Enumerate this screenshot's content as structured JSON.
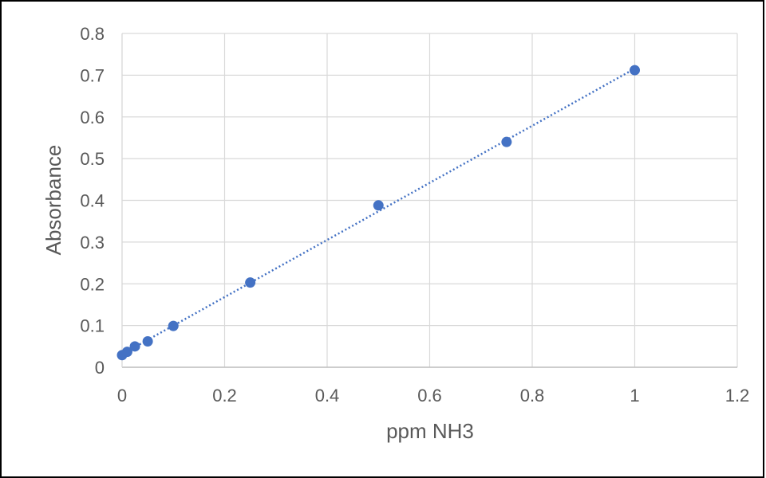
{
  "chart_data": {
    "type": "scatter",
    "title": "",
    "xlabel": "ppm NH3",
    "ylabel": "Absorbance",
    "xlim": [
      0,
      1.2
    ],
    "ylim": [
      0,
      0.8
    ],
    "x_ticks": [
      "0",
      "0.2",
      "0.4",
      "0.6",
      "0.8",
      "1",
      "1.2"
    ],
    "y_ticks": [
      "0",
      "0.1",
      "0.2",
      "0.3",
      "0.4",
      "0.5",
      "0.6",
      "0.7",
      "0.8"
    ],
    "grid": true,
    "legend": "none",
    "series": [
      {
        "x": [
          0,
          0.01,
          0.025,
          0.05,
          0.1,
          0.25,
          0.5,
          0.75,
          1.0
        ],
        "y": [
          0.029,
          0.037,
          0.05,
          0.062,
          0.099,
          0.203,
          0.388,
          0.54,
          0.712
        ],
        "color": "#4472C4",
        "trendline": {
          "type": "linear",
          "style": "dotted"
        }
      }
    ]
  }
}
